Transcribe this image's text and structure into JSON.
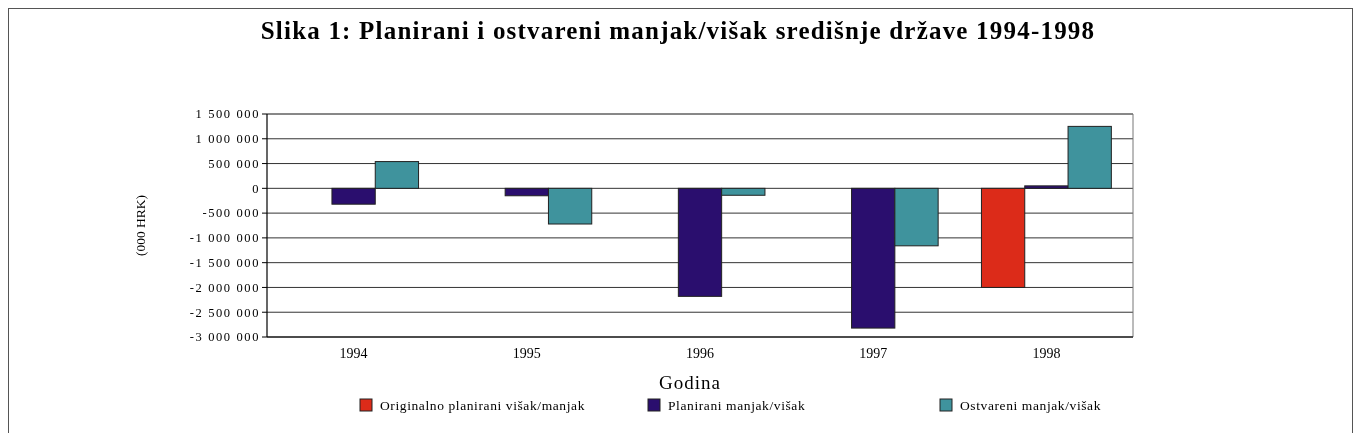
{
  "chart_data": {
    "type": "bar",
    "title": "Slika 1: Planirani i ostvareni manjak/višak središnje države 1994-1998",
    "xlabel": "Godina",
    "ylabel": "(000 HRK)",
    "categories": [
      "1994",
      "1995",
      "1996",
      "1997",
      "1998"
    ],
    "series": [
      {
        "name": "Originalno planirani višak/manjak",
        "color": "#dc2b19",
        "values": [
          null,
          null,
          null,
          null,
          -2000000
        ]
      },
      {
        "name": "Planirani manjak/višak",
        "color": "#2a0e6e",
        "values": [
          -320000,
          -150000,
          -2180000,
          -2820000,
          50000
        ]
      },
      {
        "name": "Ostvareni manjak/višak",
        "color": "#3f939d",
        "values": [
          540000,
          -720000,
          -140000,
          -1160000,
          1250000
        ]
      }
    ],
    "ylim": [
      -3000000,
      1500000
    ],
    "yticks": [
      {
        "value": -3000000,
        "label": "-3 000 000"
      },
      {
        "value": -2500000,
        "label": "-2 500 000"
      },
      {
        "value": -2000000,
        "label": "-2 000 000"
      },
      {
        "value": -1500000,
        "label": "-1 500 000"
      },
      {
        "value": -1000000,
        "label": "-1 000 000"
      },
      {
        "value": -500000,
        "label": "-500 000"
      },
      {
        "value": 0,
        "label": "0"
      },
      {
        "value": 500000,
        "label": "500 000"
      },
      {
        "value": 1000000,
        "label": "1 000 000"
      },
      {
        "value": 1500000,
        "label": "1 500 000"
      }
    ],
    "grid": "y",
    "legend": "bottom"
  }
}
